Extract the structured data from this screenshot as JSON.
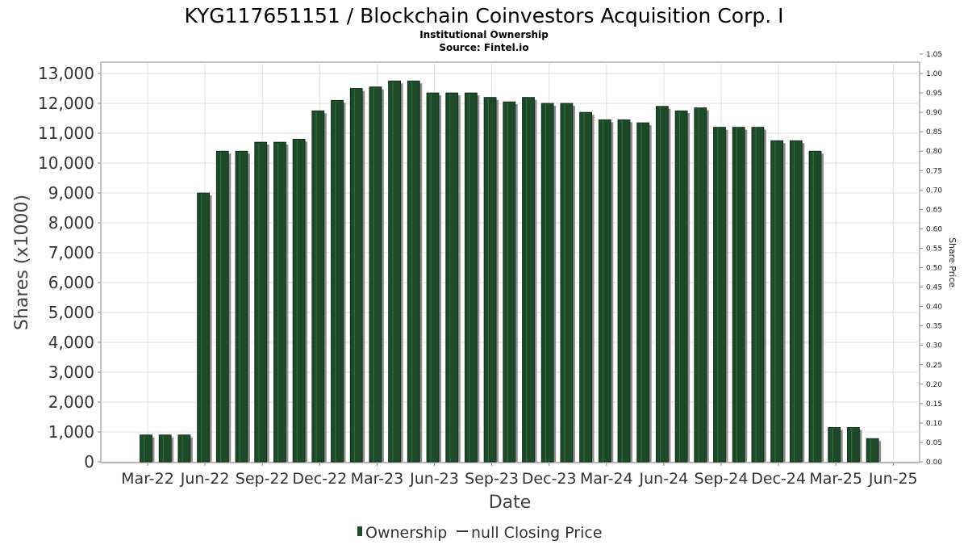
{
  "chart_data": {
    "type": "bar",
    "title": "KYG117651151 / Blockchain Coinvestors Acquisition Corp. I",
    "subtitle_lines": [
      "Institutional Ownership",
      "Source: Fintel.io"
    ],
    "xlabel": "Date",
    "ylabel": "Shares (x1000)",
    "y2label": "Share Price",
    "ylim": [
      0,
      13000
    ],
    "y_ticks": [
      0,
      1000,
      2000,
      3000,
      4000,
      5000,
      6000,
      7000,
      8000,
      9000,
      10000,
      11000,
      12000,
      13000
    ],
    "y_tick_labels": [
      "0",
      "1,000",
      "2,000",
      "3,000",
      "4,000",
      "5,000",
      "6,000",
      "7,000",
      "8,000",
      "9,000",
      "10,000",
      "11,000",
      "12,000",
      "13,000"
    ],
    "y2lim": [
      0,
      1.05
    ],
    "y2_ticks": [
      0,
      0.05,
      0.1,
      0.15,
      0.2,
      0.25,
      0.3,
      0.35,
      0.4,
      0.45,
      0.5,
      0.55,
      0.6,
      0.65,
      0.7,
      0.75,
      0.8,
      0.85,
      0.9,
      0.95,
      1.0,
      1.05
    ],
    "y2_tick_labels": [
      "0.00",
      "0.05",
      "0.10",
      "0.15",
      "0.20",
      "0.25",
      "0.30",
      "0.35",
      "0.40",
      "0.45",
      "0.50",
      "0.55",
      "0.60",
      "0.65",
      "0.70",
      "0.75",
      "0.80",
      "0.85",
      "0.90",
      "0.95",
      "1.00",
      "1.05"
    ],
    "x_tick_labels": [
      "Mar-22",
      "Jun-22",
      "Sep-22",
      "Dec-22",
      "Mar-23",
      "Jun-23",
      "Sep-23",
      "Dec-23",
      "Mar-24",
      "Jun-24",
      "Sep-24",
      "Dec-24",
      "Mar-25",
      "Jun-25"
    ],
    "grid": true,
    "legend_position": "bottom-center",
    "legend": [
      {
        "label": "Ownership",
        "marker": "bar"
      },
      {
        "label": "null Closing Price",
        "marker": "line"
      }
    ],
    "series": [
      {
        "name": "Ownership",
        "color": "#1e4a2a",
        "values": [
          900,
          900,
          900,
          9000,
          10400,
          10400,
          10700,
          10700,
          10800,
          11750,
          12100,
          12500,
          12550,
          12750,
          12750,
          12350,
          12350,
          12350,
          12200,
          12050,
          12200,
          12000,
          12000,
          11700,
          11450,
          11450,
          11350,
          11900,
          11750,
          11850,
          11200,
          11200,
          11200,
          10750,
          10750,
          10400,
          1150,
          1150,
          780
        ]
      }
    ]
  }
}
